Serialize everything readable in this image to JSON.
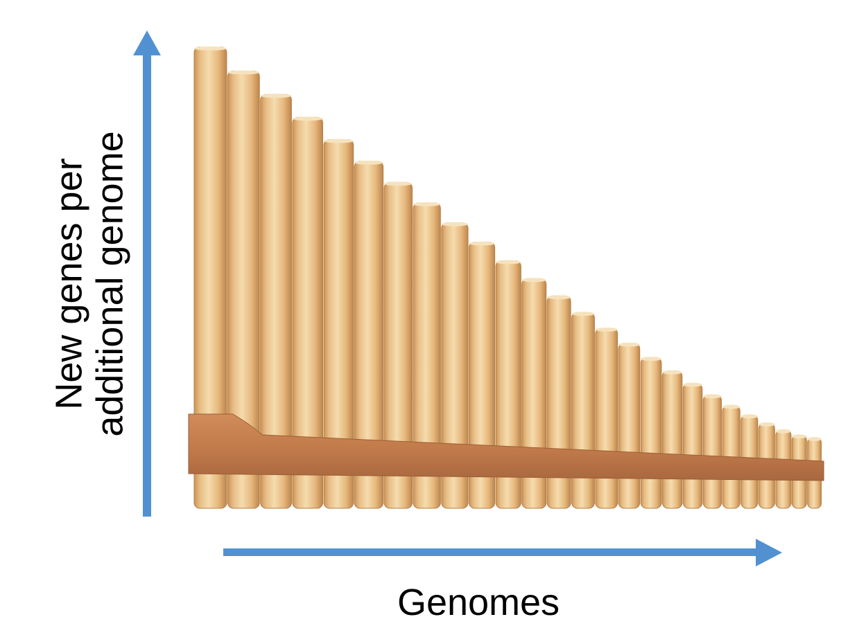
{
  "axes": {
    "y_label_line1": "New genes per",
    "y_label_line2": "additional genome",
    "x_label": "Genomes"
  },
  "colors": {
    "arrow": "#5191d1",
    "pipe_light": "#f1d2a0",
    "pipe_mid": "#e4b57a",
    "pipe_dark": "#c99458",
    "band": "#c8804f",
    "band_dark": "#a9683f"
  },
  "illustration": {
    "subject": "pan-flute-icon",
    "pipe_count": 26
  }
}
